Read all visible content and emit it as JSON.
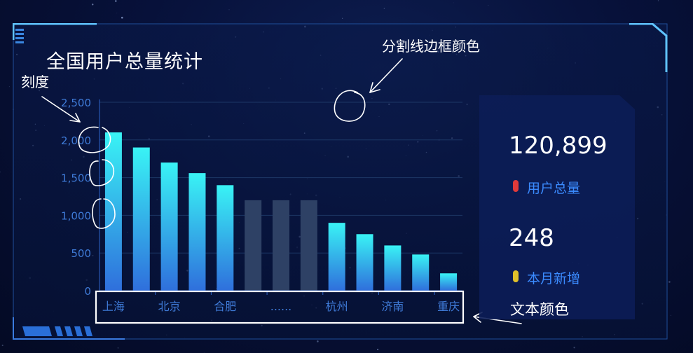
{
  "title": "全国用户总量统计",
  "chart_data": {
    "type": "bar",
    "categories": [
      "上海",
      "",
      "北京",
      "",
      "合肥",
      "",
      "......",
      "",
      "杭州",
      "",
      "济南",
      "",
      "重庆"
    ],
    "values": [
      2100,
      1900,
      1700,
      1560,
      1400,
      1200,
      1200,
      1200,
      900,
      750,
      600,
      480,
      230
    ],
    "ylim": [
      0,
      2500
    ],
    "yticks": [
      "0",
      "500",
      "1,000",
      "1,500",
      "2,000",
      "2,500"
    ],
    "grid": true,
    "colors": {
      "bar_top": "#39f3f5",
      "bar_bottom": "#2f6fdc",
      "bar_muted": "#2e4165",
      "axis_text": "#3f7bd8",
      "grid": "#1c3766"
    },
    "muted_indices": [
      5,
      6,
      7
    ]
  },
  "stats": {
    "total_value": "120,899",
    "total_label": "用户总量",
    "total_dot_color": "#e03a3a",
    "new_value": "248",
    "new_label": "本月新增",
    "new_dot_color": "#e0c12a"
  },
  "annotations": {
    "tick": "刻度",
    "split_line": "分割线边框颜色",
    "text_color": "文本颜色"
  }
}
